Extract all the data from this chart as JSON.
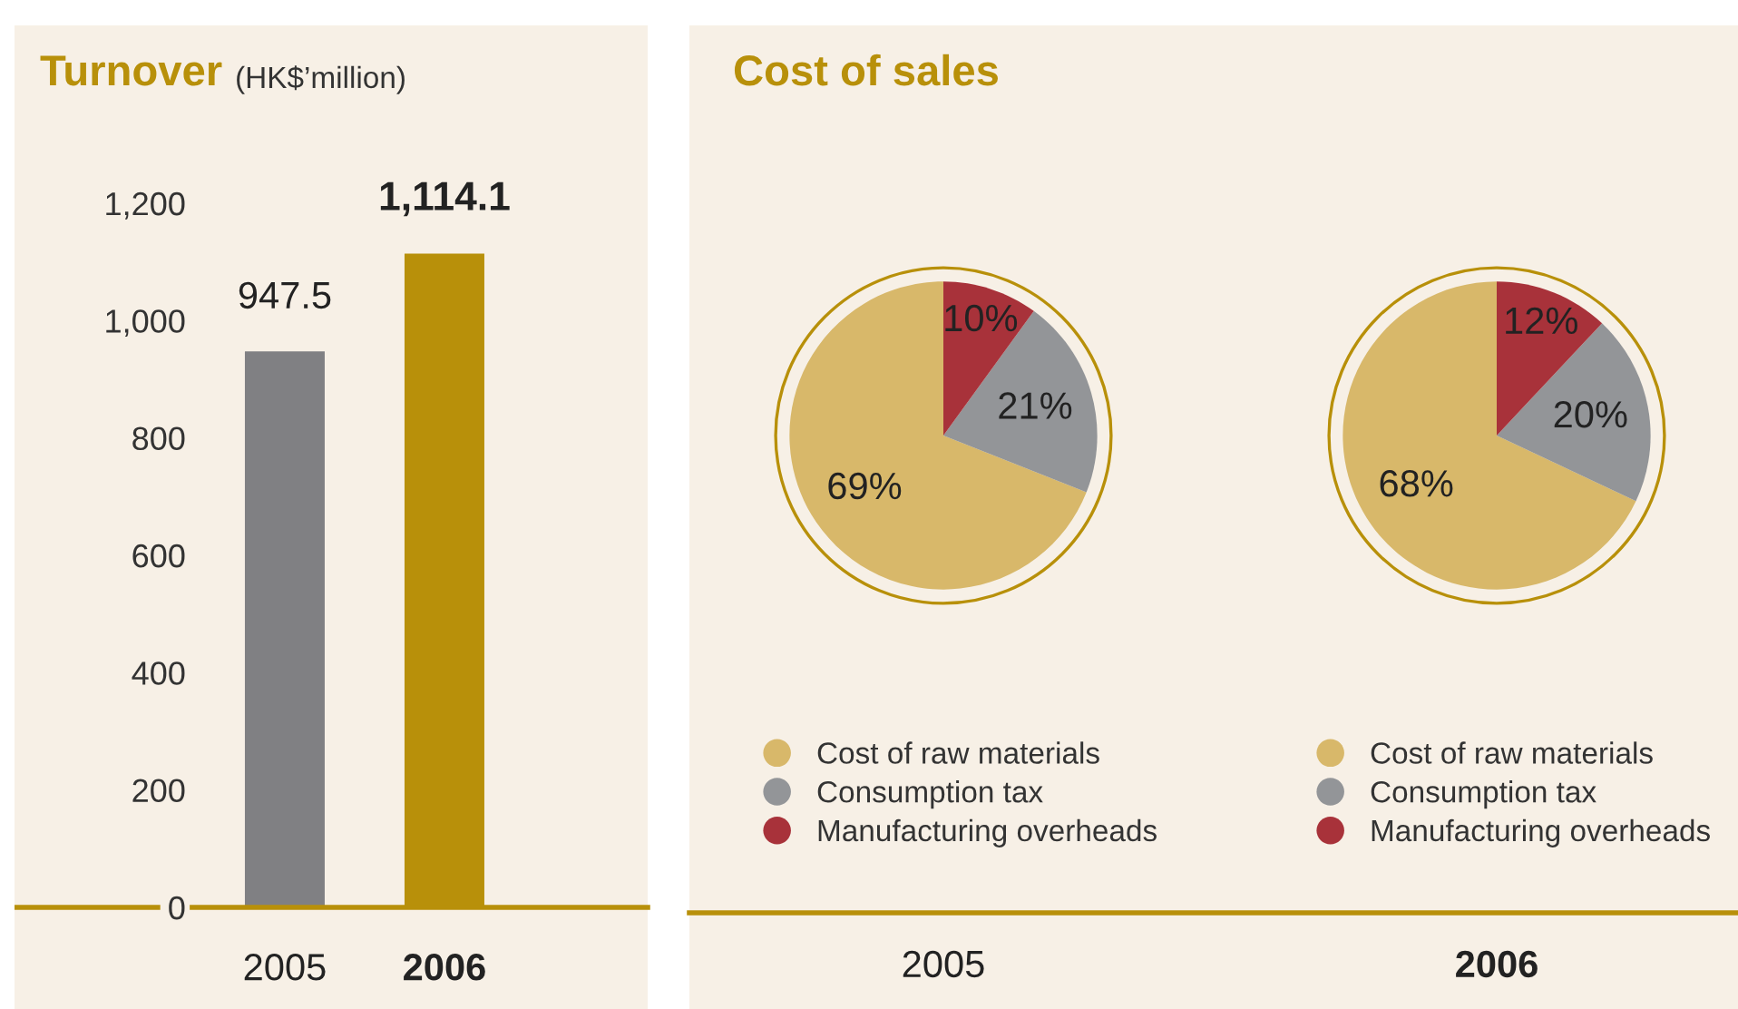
{
  "chart_data": [
    {
      "type": "bar",
      "title": "Turnover",
      "subtitle": "(HK$’million)",
      "categories": [
        "2005",
        "2006"
      ],
      "values": [
        947.5,
        1114.1
      ],
      "colors": [
        "#808083",
        "#b8900a"
      ],
      "value_labels": [
        "947.5",
        "1,114.1"
      ],
      "ylim": [
        0,
        1200
      ],
      "yticks": [
        0,
        200,
        400,
        600,
        800,
        {
          "value": 1000,
          "label": "1,000"
        },
        {
          "value": 1200,
          "label": "1,200"
        }
      ],
      "grid": false,
      "legend": false
    },
    {
      "type": "pie",
      "title": "Cost of sales",
      "xlabel": "2005",
      "categories": [
        "Cost of raw materials",
        "Consumption tax",
        "Manufacturing overheads"
      ],
      "values": [
        69,
        21,
        10
      ],
      "colors": [
        "#d8b86a",
        "#939598",
        "#a8323a"
      ],
      "value_labels": [
        "69%",
        "21%",
        "10%"
      ],
      "legend": "bottom"
    },
    {
      "type": "pie",
      "xlabel": "2006",
      "categories": [
        "Cost of raw materials",
        "Consumption tax",
        "Manufacturing overheads"
      ],
      "values": [
        68,
        20,
        12
      ],
      "colors": [
        "#d8b86a",
        "#939598",
        "#a8323a"
      ],
      "value_labels": [
        "68%",
        "20%",
        "12%"
      ],
      "legend": "bottom"
    }
  ]
}
